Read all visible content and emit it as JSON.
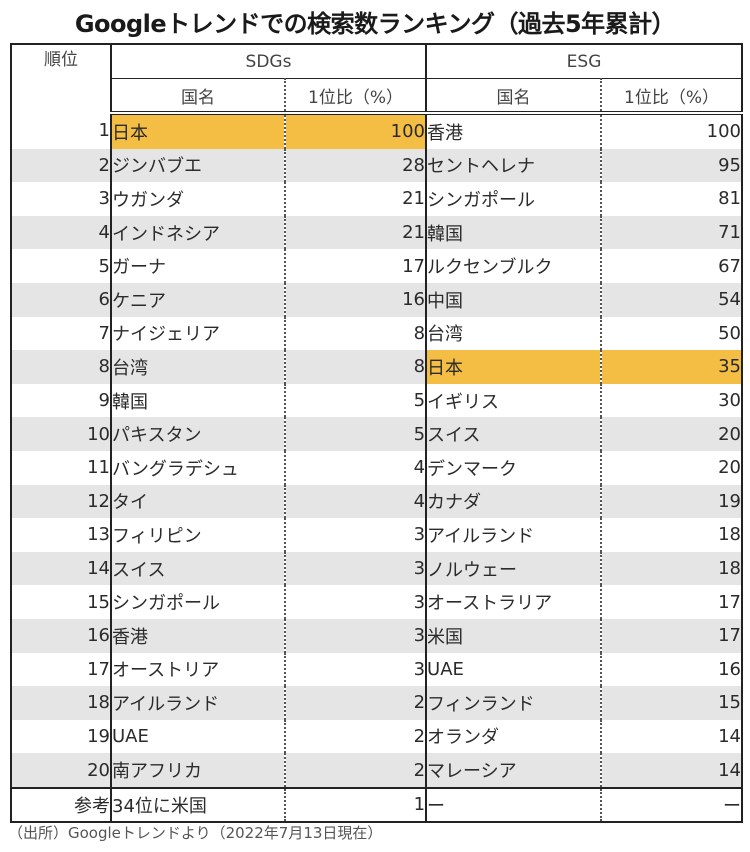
{
  "title": "Googleトレンドでの検索数ランキング（過去5年累計）",
  "header": {
    "rank": "順位",
    "group_sdgs": "SDGs",
    "group_esg": "ESG",
    "country": "国名",
    "ratio": "1位比（%）"
  },
  "colors": {
    "highlight": "#f4be45",
    "stripe": "#e5e5e5",
    "border": "#222222"
  },
  "rows": [
    {
      "rank": "1",
      "sdgs_country": "日本",
      "sdgs_value": "100",
      "esg_country": "香港",
      "esg_value": "100"
    },
    {
      "rank": "2",
      "sdgs_country": "ジンバブエ",
      "sdgs_value": "28",
      "esg_country": "セントヘレナ",
      "esg_value": "95"
    },
    {
      "rank": "3",
      "sdgs_country": "ウガンダ",
      "sdgs_value": "21",
      "esg_country": "シンガポール",
      "esg_value": "81"
    },
    {
      "rank": "4",
      "sdgs_country": "インドネシア",
      "sdgs_value": "21",
      "esg_country": "韓国",
      "esg_value": "71"
    },
    {
      "rank": "5",
      "sdgs_country": "ガーナ",
      "sdgs_value": "17",
      "esg_country": "ルクセンブルク",
      "esg_value": "67"
    },
    {
      "rank": "6",
      "sdgs_country": "ケニア",
      "sdgs_value": "16",
      "esg_country": "中国",
      "esg_value": "54"
    },
    {
      "rank": "7",
      "sdgs_country": "ナイジェリア",
      "sdgs_value": "8",
      "esg_country": "台湾",
      "esg_value": "50"
    },
    {
      "rank": "8",
      "sdgs_country": "台湾",
      "sdgs_value": "8",
      "esg_country": "日本",
      "esg_value": "35"
    },
    {
      "rank": "9",
      "sdgs_country": "韓国",
      "sdgs_value": "5",
      "esg_country": "イギリス",
      "esg_value": "30"
    },
    {
      "rank": "10",
      "sdgs_country": "パキスタン",
      "sdgs_value": "5",
      "esg_country": "スイス",
      "esg_value": "20"
    },
    {
      "rank": "11",
      "sdgs_country": "バングラデシュ",
      "sdgs_value": "4",
      "esg_country": "デンマーク",
      "esg_value": "20"
    },
    {
      "rank": "12",
      "sdgs_country": "タイ",
      "sdgs_value": "4",
      "esg_country": "カナダ",
      "esg_value": "19"
    },
    {
      "rank": "13",
      "sdgs_country": "フィリピン",
      "sdgs_value": "3",
      "esg_country": "アイルランド",
      "esg_value": "18"
    },
    {
      "rank": "14",
      "sdgs_country": "スイス",
      "sdgs_value": "3",
      "esg_country": "ノルウェー",
      "esg_value": "18"
    },
    {
      "rank": "15",
      "sdgs_country": "シンガポール",
      "sdgs_value": "3",
      "esg_country": "オーストラリア",
      "esg_value": "17"
    },
    {
      "rank": "16",
      "sdgs_country": "香港",
      "sdgs_value": "3",
      "esg_country": "米国",
      "esg_value": "17"
    },
    {
      "rank": "17",
      "sdgs_country": "オーストリア",
      "sdgs_value": "3",
      "esg_country": "UAE",
      "esg_value": "16"
    },
    {
      "rank": "18",
      "sdgs_country": "アイルランド",
      "sdgs_value": "2",
      "esg_country": "フィンランド",
      "esg_value": "15"
    },
    {
      "rank": "19",
      "sdgs_country": "UAE",
      "sdgs_value": "2",
      "esg_country": "オランダ",
      "esg_value": "14"
    },
    {
      "rank": "20",
      "sdgs_country": "南アフリカ",
      "sdgs_value": "2",
      "esg_country": "マレーシア",
      "esg_value": "14"
    }
  ],
  "reference": {
    "rank": "参考",
    "sdgs_country": "34位に米国",
    "sdgs_value": "1",
    "esg_country": "ー",
    "esg_value": "ー"
  },
  "highlights": {
    "sdgs_row_index": 0,
    "esg_row_index": 7
  },
  "footer": "（出所）Googleトレンドより（2022年7月13日現在）"
}
